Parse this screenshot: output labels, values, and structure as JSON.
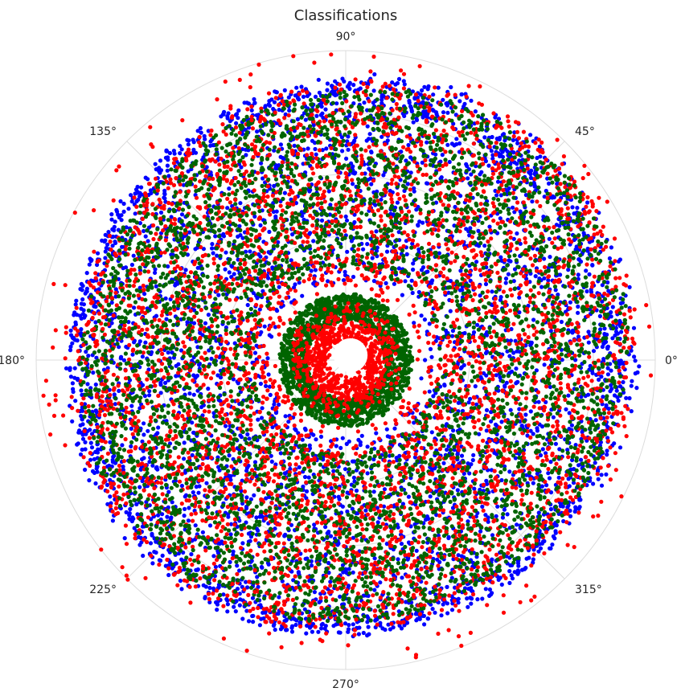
{
  "chart_data": {
    "type": "scatter",
    "projection": "polar",
    "title": "Classifications",
    "theta_tick_labels": [
      "0°",
      "45°",
      "90°",
      "135°",
      "180°",
      "225°",
      "270°",
      "315°"
    ],
    "theta_ticks_deg": [
      0,
      45,
      90,
      135,
      180,
      225,
      270,
      315
    ],
    "radial_tick_labels": [],
    "grid": true,
    "legend": "none",
    "series": [
      {
        "color": "#0000ff",
        "distribution": "broad outer disk",
        "r_range": [
          0.25,
          0.93
        ],
        "approx_point_count": 4500
      },
      {
        "color": "#ff0000",
        "distribution": "outer disk plus inner ring with outliers",
        "r_range": [
          0.04,
          1.0
        ],
        "approx_point_count": 5200
      },
      {
        "color": "#006400",
        "distribution": "dense disk and inner ring",
        "r_range": [
          0.16,
          0.88
        ],
        "approx_point_count": 6000
      }
    ]
  }
}
